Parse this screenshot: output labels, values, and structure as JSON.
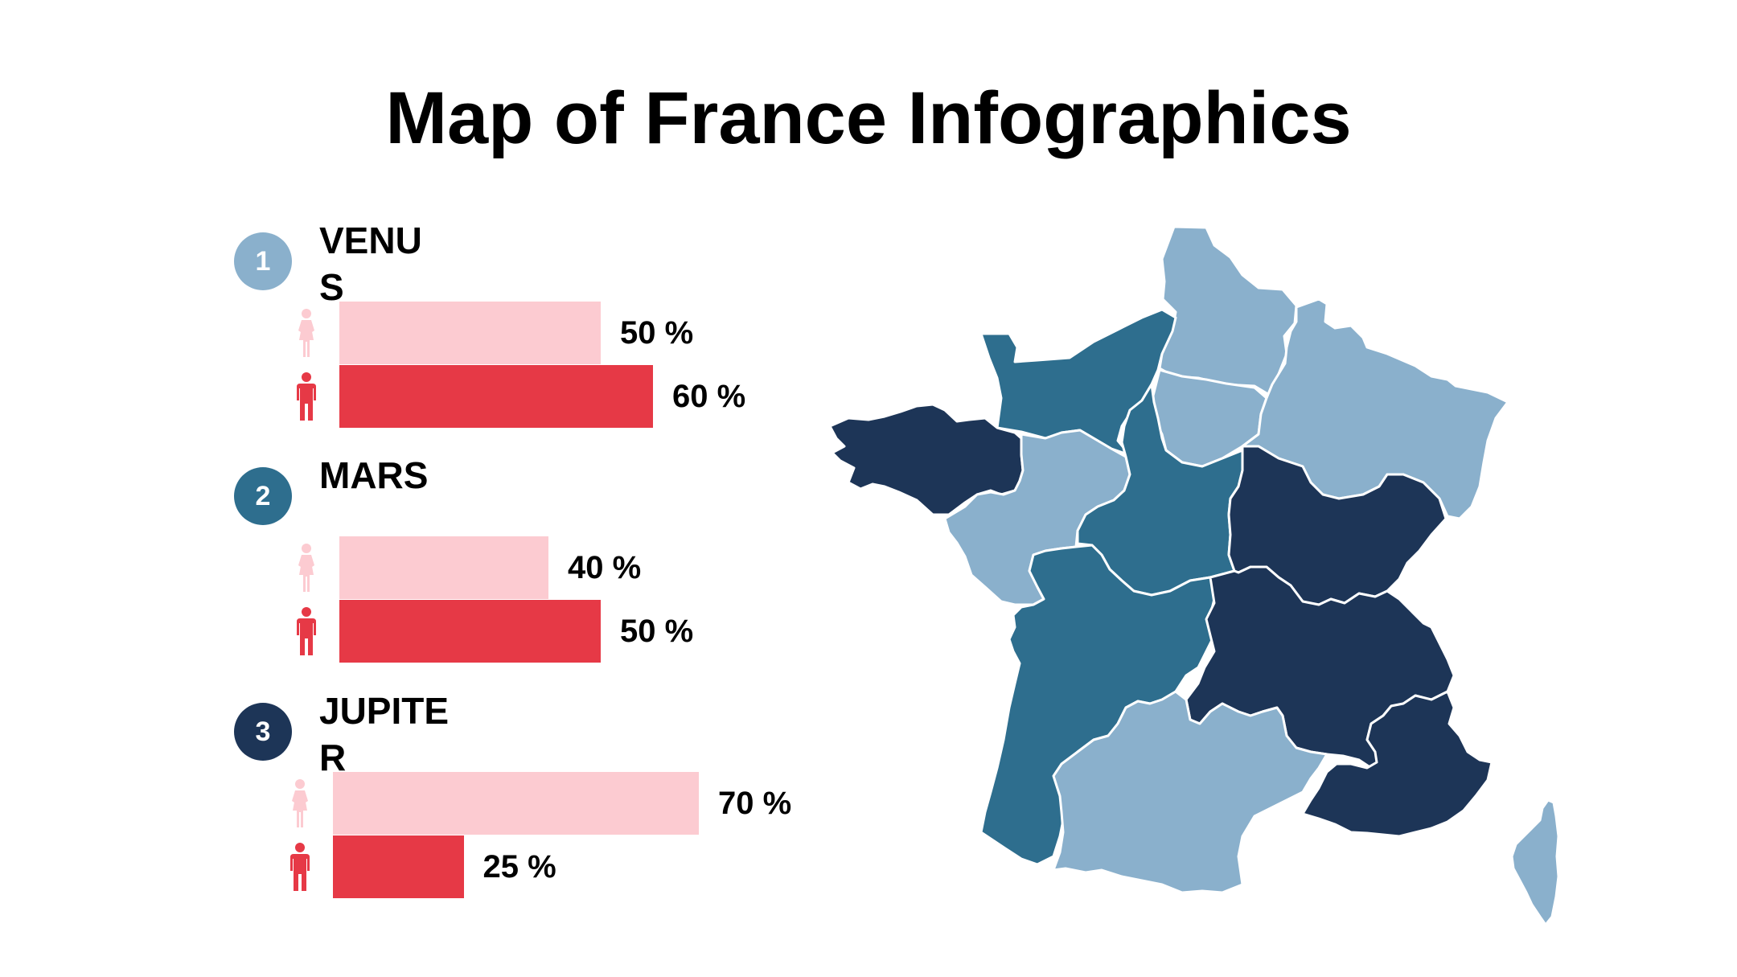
{
  "title": "Map of France Infographics",
  "colors": {
    "female": "#fccbd1",
    "male": "#e63946",
    "light": "#8ab0cc",
    "mid": "#2e6e8e",
    "dark": "#1d3557",
    "border": "#ffffff"
  },
  "chart_data": {
    "type": "bar",
    "title": "",
    "xlabel": "",
    "ylabel": "",
    "xlim": [
      0,
      100
    ],
    "categories": [
      "VENUS",
      "MARS",
      "JUPITER"
    ],
    "series": [
      {
        "values": [
          50,
          40,
          70
        ],
        "color": "#fccbd1",
        "icon": "female-icon"
      },
      {
        "values": [
          60,
          50,
          25
        ],
        "color": "#e63946",
        "icon": "male-icon"
      }
    ],
    "groups": [
      {
        "number": "1",
        "label": "VENUS",
        "badge_color": "#8ab0cc",
        "female_pct": 50,
        "male_pct": 60,
        "female_label": "50 %",
        "male_label": "60 %"
      },
      {
        "number": "2",
        "label": "MARS",
        "badge_color": "#2e6e8e",
        "female_pct": 40,
        "male_pct": 50,
        "female_label": "40 %",
        "male_label": "50 %"
      },
      {
        "number": "3",
        "label": "JUPITER",
        "badge_color": "#1d3557",
        "female_pct": 70,
        "male_pct": 25,
        "female_label": "70 %",
        "male_label": "25 %"
      }
    ]
  },
  "map": {
    "regions": [
      {
        "name": "Hauts-de-France",
        "shade": "light"
      },
      {
        "name": "Normandie",
        "shade": "mid"
      },
      {
        "name": "Île-de-France",
        "shade": "light"
      },
      {
        "name": "Grand Est",
        "shade": "light"
      },
      {
        "name": "Bretagne",
        "shade": "dark"
      },
      {
        "name": "Pays de la Loire",
        "shade": "light"
      },
      {
        "name": "Centre-Val de Loire",
        "shade": "mid"
      },
      {
        "name": "Bourgogne-Franche-Comté",
        "shade": "dark"
      },
      {
        "name": "Nouvelle-Aquitaine",
        "shade": "mid"
      },
      {
        "name": "Auvergne-Rhône-Alpes",
        "shade": "dark"
      },
      {
        "name": "Occitanie",
        "shade": "light"
      },
      {
        "name": "Provence-Alpes-Côte d'Azur",
        "shade": "dark"
      },
      {
        "name": "Corse",
        "shade": "light"
      }
    ]
  }
}
